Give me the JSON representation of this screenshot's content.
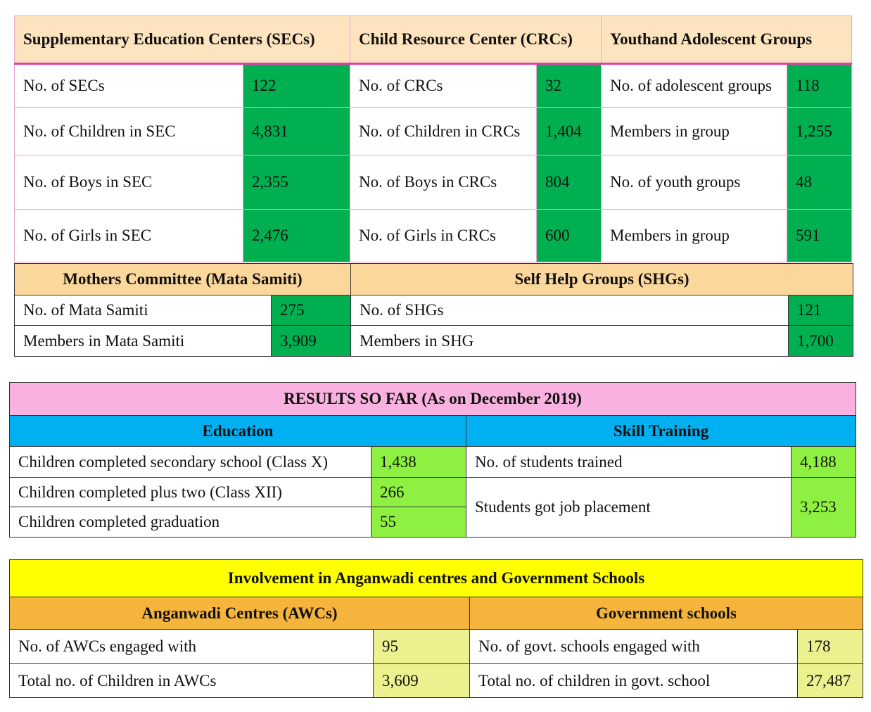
{
  "programs": {
    "headers": [
      "Supplementary Education Centers (SECs)",
      "Child Resource Center (CRCs)",
      "Youthand Adolescent Groups"
    ],
    "rows": [
      [
        "No. of SECs",
        "122",
        "No. of CRCs",
        "32",
        "No. of adolescent groups",
        "118"
      ],
      [
        "No. of Children in SEC",
        "4,831",
        "No. of Children in CRCs",
        "1,404",
        "Members in group",
        "1,255"
      ],
      [
        "No. of Boys in SEC",
        "2,355",
        "No. of Boys in CRCs",
        "804",
        "No. of youth groups",
        "48"
      ],
      [
        "No. of Girls in SEC",
        "2,476",
        "No. of Girls in CRCs",
        "600",
        "Members in group",
        "591"
      ]
    ]
  },
  "groups": {
    "headers": [
      "Mothers Committee (Mata Samiti)",
      "Self Help Groups (SHGs)"
    ],
    "rows": [
      [
        "No. of Mata Samiti",
        "275",
        "No. of SHGs",
        "121"
      ],
      [
        "Members in Mata Samiti",
        "3,909",
        "Members in SHG",
        "1,700"
      ]
    ]
  },
  "results": {
    "title": "RESULTS SO FAR (As on December 2019)",
    "headers": [
      "Education",
      "Skill Training"
    ],
    "education_rows": [
      [
        "Children completed secondary school (Class X)",
        "1,438"
      ],
      [
        "Children completed plus two (Class XII)",
        "266"
      ],
      [
        "Children completed graduation",
        "55"
      ]
    ],
    "skill_rows": [
      [
        "No. of students trained",
        "4,188"
      ],
      [
        "Students got job placement",
        "3,253"
      ]
    ]
  },
  "involvement": {
    "title": "Involvement in Anganwadi centres and Government Schools",
    "headers": [
      "Anganwadi Centres (AWCs)",
      "Government schools"
    ],
    "awc_rows": [
      [
        "No. of AWCs engaged with",
        "95"
      ],
      [
        "Total no. of Children in AWCs",
        "3,609"
      ]
    ],
    "school_rows": [
      [
        "No. of govt. schools engaged with",
        "178"
      ],
      [
        "Total no. of  children in govt. school",
        "27,487"
      ]
    ]
  }
}
